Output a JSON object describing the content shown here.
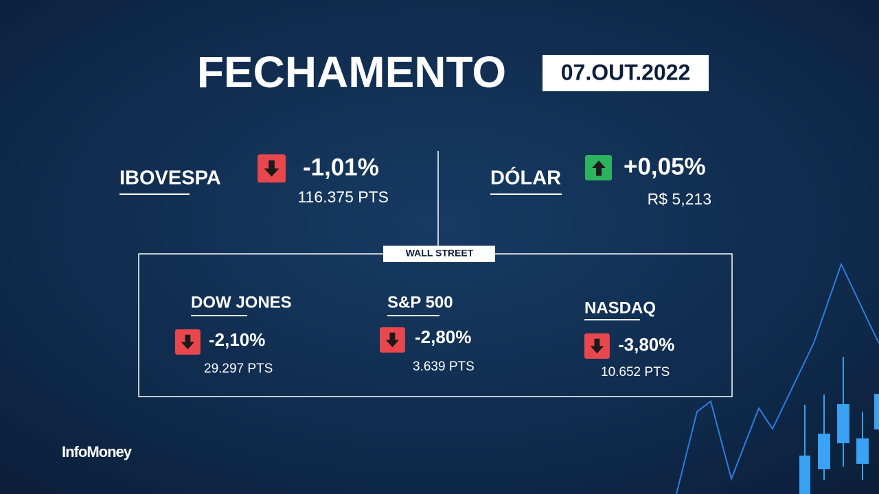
{
  "header": {
    "title": "FECHAMENTO",
    "date": "07.OUT.2022"
  },
  "brazil": [
    {
      "name": "IBOVESPA",
      "change": "-1,01%",
      "value": "116.375 PTS"
    },
    {
      "name": "DÓLAR",
      "change": "+0,05%",
      "value": "R$ 5,213"
    }
  ],
  "wall_street": {
    "label": "WALL STREET",
    "items": [
      {
        "name": "DOW JONES",
        "change": "-2,10%",
        "value": "29.297 PTS"
      },
      {
        "name": "S&P 500",
        "change": "-2,80%",
        "value": "3.639 PTS"
      },
      {
        "name": "NASDAQ",
        "change": "-3,80%",
        "value": "10.652 PTS"
      }
    ]
  },
  "footer": {
    "brand": "InfoMoney"
  }
}
